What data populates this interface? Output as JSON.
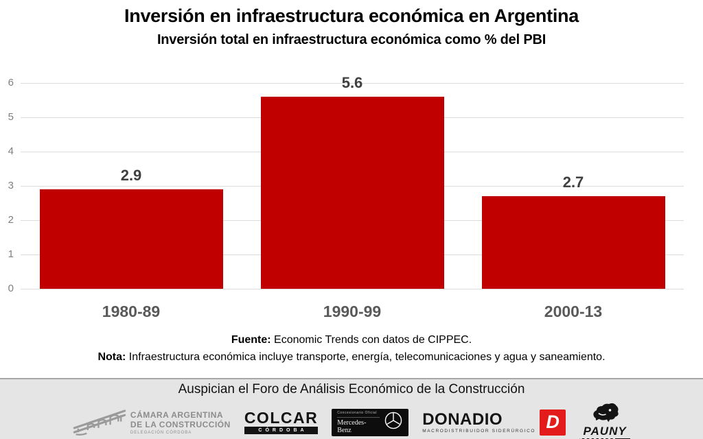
{
  "header": {
    "title": "Inversión en infraestructura económica en Argentina",
    "subtitle": "Inversión total en infraestructura económica como % del PBI"
  },
  "chart_data": {
    "type": "bar",
    "title": "Inversión en infraestructura económica en Argentina",
    "subtitle": "Inversión total en infraestructura económica como % del PBI",
    "categories": [
      "1980-89",
      "1990-99",
      "2000-13"
    ],
    "values": [
      2.9,
      5.6,
      2.7
    ],
    "data_labels": [
      "2.9",
      "5.6",
      "2.7"
    ],
    "xlabel": "",
    "ylabel": "",
    "ylim": [
      0,
      6
    ],
    "yticks": [
      0,
      1,
      2,
      3,
      4,
      5,
      6
    ],
    "grid": true,
    "legend": false,
    "bar_color": "#c00000",
    "label_color": "#404040",
    "source": "Fuente: Economic Trends con datos de CIPPEC.",
    "note": "Nota: Infraestructura económica incluye transporte, energía, telecomunicaciones y agua y saneamiento."
  },
  "notes": {
    "source_label": "Fuente:",
    "source_text": " Economic Trends con datos de CIPPEC.",
    "note_label": "Nota:",
    "note_text": " Infraestructura económica incluye transporte, energía, telecomunicaciones y agua y saneamiento."
  },
  "footer": {
    "title": "Auspician el Foro de Análisis Económico de la Construcción",
    "logos": {
      "cac": {
        "line1": "CÁMARA ARGENTINA",
        "line2": "DE LA CONSTRUCCIÓN",
        "line3": "DELEGACIÓN CÓRDOBA"
      },
      "colcar": {
        "name": "COLCAR",
        "sub": "CÓRDOBA"
      },
      "mercedes": {
        "top": "Concesionario Oficial",
        "name": "Mercedes-Benz"
      },
      "donadio": {
        "name": "DONADIO",
        "sub": "MACRODISTRIBUIDOR SIDERÚRGICO",
        "badge": "D"
      },
      "pauny": {
        "name": "PAUNY"
      }
    }
  },
  "colors": {
    "bar": "#c00000",
    "grid": "#dcdcdc",
    "y_tick_text": "#7f7f7f",
    "x_tick_text": "#595959",
    "value_label_text": "#404040",
    "footer_bg": "#e5e5e5",
    "donadio_red": "#e31b1b"
  }
}
